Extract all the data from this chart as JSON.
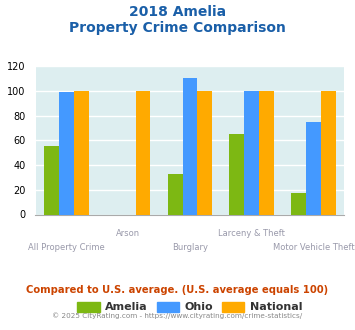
{
  "title_line1": "2018 Amelia",
  "title_line2": "Property Crime Comparison",
  "categories": [
    "All Property Crime",
    "Arson",
    "Burglary",
    "Larceny & Theft",
    "Motor Vehicle Theft"
  ],
  "amelia": [
    55,
    0,
    33,
    65,
    17
  ],
  "ohio": [
    99,
    0,
    110,
    100,
    75
  ],
  "national": [
    100,
    100,
    100,
    100,
    100
  ],
  "color_amelia": "#7db813",
  "color_ohio": "#4499ff",
  "color_national": "#ffaa00",
  "ylim": [
    0,
    120
  ],
  "yticks": [
    0,
    20,
    40,
    60,
    80,
    100,
    120
  ],
  "bg_color": "#ddeef0",
  "grid_color": "#ffffff",
  "title_color": "#1a5fa8",
  "xlabel_color": "#9999aa",
  "footer_text": "Compared to U.S. average. (U.S. average equals 100)",
  "copyright_text": "© 2025 CityRating.com - https://www.cityrating.com/crime-statistics/",
  "footer_color": "#cc4400",
  "copyright_color": "#888888",
  "legend_labels": [
    "Amelia",
    "Ohio",
    "National"
  ]
}
